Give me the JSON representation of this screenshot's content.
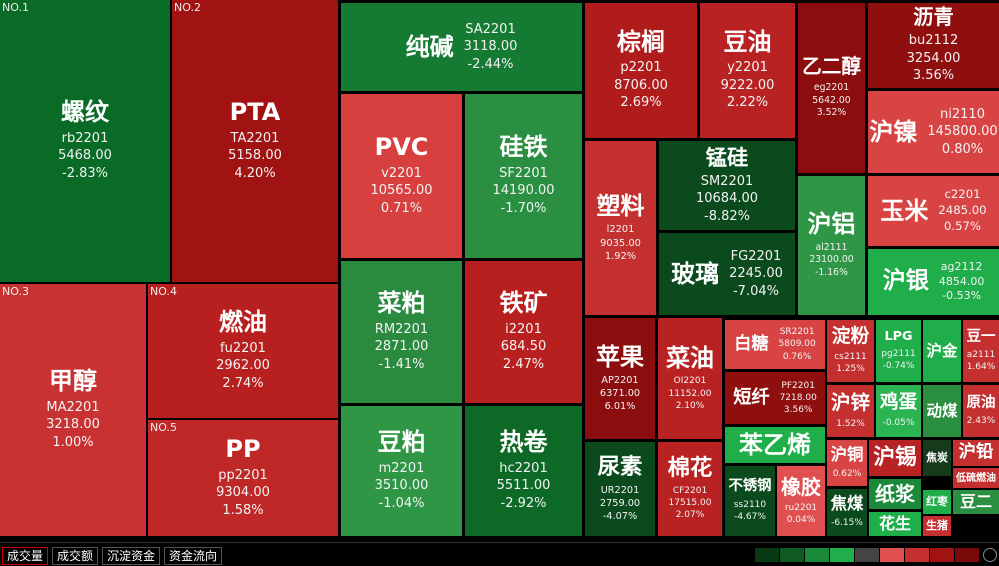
{
  "tiles": [
    {
      "rank": "NO.1",
      "name": "螺纹",
      "code": "rb2201",
      "price": "5468.00",
      "change": "-2.83%",
      "color": "#0a6b26"
    },
    {
      "rank": "NO.2",
      "name": "PTA",
      "code": "TA2201",
      "price": "5158.00",
      "change": "4.20%",
      "color": "#a11212"
    },
    {
      "rank": "NO.3",
      "name": "甲醇",
      "code": "MA2201",
      "price": "3218.00",
      "change": "1.00%",
      "color": "#c83232"
    },
    {
      "rank": "NO.4",
      "name": "燃油",
      "code": "fu2201",
      "price": "2962.00",
      "change": "2.74%",
      "color": "#b82020"
    },
    {
      "rank": "NO.5",
      "name": "PP",
      "code": "pp2201",
      "price": "9304.00",
      "change": "1.58%",
      "color": "#c02828"
    },
    {
      "name": "纯碱",
      "code": "SA2201",
      "price": "3118.00",
      "change": "-2.44%",
      "color": "#157a32"
    },
    {
      "name": "PVC",
      "code": "v2201",
      "price": "10565.00",
      "change": "0.71%",
      "color": "#d84040"
    },
    {
      "name": "硅铁",
      "code": "SF2201",
      "price": "14190.00",
      "change": "-1.70%",
      "color": "#2a8f40"
    },
    {
      "name": "菜粕",
      "code": "RM2201",
      "price": "2871.00",
      "change": "-1.41%",
      "color": "#2a8a3e"
    },
    {
      "name": "铁矿",
      "code": "i2201",
      "price": "684.50",
      "change": "2.47%",
      "color": "#b82020"
    },
    {
      "name": "豆粕",
      "code": "m2201",
      "price": "3510.00",
      "change": "-1.04%",
      "color": "#2f9645"
    },
    {
      "name": "热卷",
      "code": "hc2201",
      "price": "5511.00",
      "change": "-2.92%",
      "color": "#0c6a26"
    },
    {
      "name": "棕榈",
      "code": "p2201",
      "price": "8706.00",
      "change": "2.69%",
      "color": "#b01c1c"
    },
    {
      "name": "豆油",
      "code": "y2201",
      "price": "9222.00",
      "change": "2.22%",
      "color": "#b82222"
    },
    {
      "name": "乙二醇",
      "code": "eg2201",
      "price": "5642.00",
      "change": "3.52%",
      "color": "#8c0d0d"
    },
    {
      "name": "沥青",
      "code": "bu2112",
      "price": "3254.00",
      "change": "3.56%",
      "color": "#8f0e0e"
    },
    {
      "name": "沪镍",
      "code": "ni2110",
      "price": "145800.00",
      "change": "0.80%",
      "color": "#d84444"
    },
    {
      "name": "塑料",
      "code": "l2201",
      "price": "9035.00",
      "change": "1.92%",
      "color": "#c43030"
    },
    {
      "name": "锰硅",
      "code": "SM2201",
      "price": "10684.00",
      "change": "-8.82%",
      "color": "#0a4a1c"
    },
    {
      "name": "玻璃",
      "code": "FG2201",
      "price": "2245.00",
      "change": "-7.04%",
      "color": "#0a4a1c"
    },
    {
      "name": "沪铝",
      "code": "al2111",
      "price": "23100.00",
      "change": "-1.16%",
      "color": "#2f9645"
    },
    {
      "name": "玉米",
      "code": "c2201",
      "price": "2485.00",
      "change": "0.57%",
      "color": "#d84444"
    },
    {
      "name": "沪银",
      "code": "ag2112",
      "price": "4854.00",
      "change": "-0.53%",
      "color": "#1fae4a"
    },
    {
      "name": "苹果",
      "code": "AP2201",
      "price": "6371.00",
      "change": "6.01%",
      "color": "#8c0d0d"
    },
    {
      "name": "菜油",
      "code": "OI2201",
      "price": "11152.00",
      "change": "2.10%",
      "color": "#b82222"
    },
    {
      "name": "尿素",
      "code": "UR2201",
      "price": "2759.00",
      "change": "-4.07%",
      "color": "#0a4a1c"
    },
    {
      "name": "棉花",
      "code": "CF2201",
      "price": "17515.00",
      "change": "2.07%",
      "color": "#b82222"
    },
    {
      "name": "白糖",
      "code": "SR2201",
      "price": "5809.00",
      "change": "0.76%",
      "color": "#d84444"
    },
    {
      "name": "短纤",
      "code": "PF2201",
      "price": "7218.00",
      "change": "3.56%",
      "color": "#8f0e0e"
    },
    {
      "name": "苯乙烯",
      "color": "#1fae4a"
    },
    {
      "name": "不锈钢",
      "code": "ss2110",
      "change": "-4.67%",
      "color": "#0a4a1c"
    },
    {
      "name": "橡胶",
      "code": "ru2201",
      "change": "0.04%",
      "color": "#e05050"
    },
    {
      "name": "淀粉",
      "code": "cs2111",
      "change": "1.25%",
      "color": "#c43030"
    },
    {
      "name": "LPG",
      "code": "pg2111",
      "change": "-0.74%",
      "color": "#1fae4a"
    },
    {
      "name": "沪金",
      "color": "#1fae4a"
    },
    {
      "name": "豆一",
      "code": "a2111",
      "change": "1.64%",
      "color": "#c43030"
    },
    {
      "name": "沪锌",
      "change": "1.52%",
      "color": "#c43030"
    },
    {
      "name": "鸡蛋",
      "change": "-0.05%",
      "color": "#2bb552"
    },
    {
      "name": "动煤",
      "color": "#2a8f40"
    },
    {
      "name": "原油",
      "change": "2.43%",
      "color": "#c43030"
    },
    {
      "name": "沪铜",
      "change": "0.62%",
      "color": "#d84444"
    },
    {
      "name": "焦煤",
      "change": "-6.15%",
      "color": "#0a4a1c"
    },
    {
      "name": "沪锡",
      "color": "#b82222"
    },
    {
      "name": "焦炭",
      "color": "#153a1c"
    },
    {
      "name": "沪铅",
      "color": "#c43030"
    },
    {
      "name": "低硫燃油",
      "color": "#c43030"
    },
    {
      "name": "纸浆",
      "color": "#1a8a3a"
    },
    {
      "name": "红枣",
      "color": "#1fae4a"
    },
    {
      "name": "豆二",
      "color": "#2a8f40"
    },
    {
      "name": "花生",
      "color": "#1fae4a"
    },
    {
      "name": "生猪",
      "color": "#c43030"
    }
  ],
  "tabs": [
    "成交量",
    "成交额",
    "沉淀资金",
    "资金流向"
  ]
}
